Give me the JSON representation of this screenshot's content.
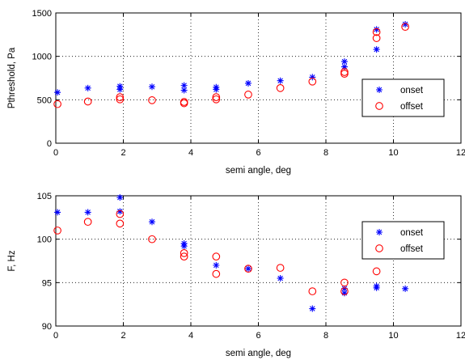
{
  "chart_data": [
    {
      "type": "scatter",
      "xlabel": "semi angle, deg",
      "ylabel": "Pthreshold, Pa",
      "xlim": [
        0,
        12
      ],
      "ylim": [
        0,
        1500
      ],
      "xticks": [
        0,
        2,
        4,
        6,
        8,
        10,
        12
      ],
      "yticks": [
        0,
        500,
        1000,
        1500
      ],
      "grid": true,
      "legend_position": "right",
      "series": [
        {
          "name": "onset",
          "marker": "star",
          "color": "#0000ff",
          "points": [
            [
              0.05,
              585
            ],
            [
              0.95,
              635
            ],
            [
              1.9,
              620
            ],
            [
              1.9,
              655
            ],
            [
              2.85,
              650
            ],
            [
              3.8,
              610
            ],
            [
              3.8,
              665
            ],
            [
              4.75,
              620
            ],
            [
              4.75,
              645
            ],
            [
              5.7,
              690
            ],
            [
              6.65,
              720
            ],
            [
              7.6,
              760
            ],
            [
              8.55,
              880
            ],
            [
              8.55,
              940
            ],
            [
              9.5,
              1080
            ],
            [
              9.5,
              1310
            ],
            [
              10.35,
              1370
            ]
          ]
        },
        {
          "name": "offset",
          "marker": "circle",
          "color": "#ff0000",
          "points": [
            [
              0.05,
              450
            ],
            [
              0.95,
              480
            ],
            [
              1.9,
              505
            ],
            [
              1.9,
              530
            ],
            [
              2.85,
              495
            ],
            [
              3.8,
              460
            ],
            [
              3.8,
              475
            ],
            [
              4.75,
              505
            ],
            [
              4.75,
              530
            ],
            [
              5.7,
              560
            ],
            [
              6.65,
              635
            ],
            [
              7.6,
              710
            ],
            [
              8.55,
              800
            ],
            [
              8.55,
              820
            ],
            [
              9.5,
              1210
            ],
            [
              9.5,
              1280
            ],
            [
              10.35,
              1340
            ]
          ]
        }
      ]
    },
    {
      "type": "scatter",
      "xlabel": "semi angle, deg",
      "ylabel": "F, Hz",
      "xlim": [
        0,
        12
      ],
      "ylim": [
        90,
        105
      ],
      "xticks": [
        0,
        2,
        4,
        6,
        8,
        10,
        12
      ],
      "yticks": [
        90,
        95,
        100,
        105
      ],
      "grid": true,
      "legend_position": "top-right",
      "series": [
        {
          "name": "onset",
          "marker": "star",
          "color": "#0000ff",
          "points": [
            [
              0.05,
              103.1
            ],
            [
              0.95,
              103.1
            ],
            [
              1.9,
              103.2
            ],
            [
              1.9,
              104.8
            ],
            [
              2.85,
              102.0
            ],
            [
              3.8,
              99.2
            ],
            [
              3.8,
              99.5
            ],
            [
              4.75,
              97.0
            ],
            [
              5.7,
              96.6
            ],
            [
              6.65,
              95.5
            ],
            [
              7.6,
              92.0
            ],
            [
              8.55,
              93.8
            ],
            [
              8.55,
              94.3
            ],
            [
              9.5,
              94.4
            ],
            [
              9.5,
              94.6
            ],
            [
              10.35,
              94.3
            ]
          ]
        },
        {
          "name": "offset",
          "marker": "circle",
          "color": "#ff0000",
          "points": [
            [
              0.05,
              101.0
            ],
            [
              0.95,
              102.0
            ],
            [
              1.9,
              101.8
            ],
            [
              1.9,
              102.9
            ],
            [
              2.85,
              100.0
            ],
            [
              3.8,
              98.0
            ],
            [
              3.8,
              98.4
            ],
            [
              4.75,
              96.0
            ],
            [
              4.75,
              98.0
            ],
            [
              5.7,
              96.6
            ],
            [
              6.65,
              96.7
            ],
            [
              7.6,
              94.0
            ],
            [
              8.55,
              94.0
            ],
            [
              8.55,
              95.0
            ],
            [
              9.5,
              96.3
            ]
          ]
        }
      ]
    }
  ]
}
